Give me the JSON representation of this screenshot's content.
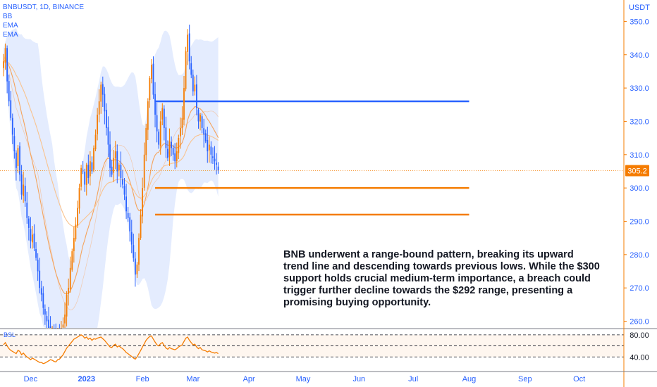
{
  "chart_data": {
    "type": "candlestick",
    "symbol_header": "BNBUSDT, 1D, BINANCE",
    "indicators": [
      "BB",
      "EMA",
      "EMA"
    ],
    "currency": "USDT",
    "current_price": "305.2",
    "price_axis": {
      "range": [
        258,
        356
      ],
      "ticks": [
        "350.0",
        "340.0",
        "330.0",
        "320.0",
        "310.0",
        "300.0",
        "290.0",
        "280.0",
        "270.0",
        "260.0"
      ],
      "tick_values": [
        350,
        340,
        330,
        320,
        310,
        300,
        290,
        280,
        270,
        260
      ]
    },
    "time_axis": {
      "labels": [
        "Dec",
        "2023",
        "Feb",
        "Mar",
        "Apr",
        "May",
        "Jun",
        "Jul",
        "Aug",
        "Sep",
        "Oct"
      ],
      "label_days": [
        15,
        46,
        77,
        105,
        136,
        166,
        197,
        227,
        258,
        289,
        319
      ]
    },
    "levels": [
      {
        "price": 326,
        "color": "#2962ff",
        "from_day": 84,
        "to_day": 258
      },
      {
        "price": 300,
        "color": "#f57c00",
        "from_day": 84,
        "to_day": 258
      },
      {
        "price": 292,
        "color": "#f57c00",
        "from_day": 84,
        "to_day": 258
      }
    ],
    "closes": [
      338,
      342,
      332,
      326,
      321,
      316,
      311,
      306,
      312,
      304,
      298,
      301,
      296,
      291,
      288,
      284,
      286,
      282,
      279,
      275,
      270,
      268,
      264,
      262,
      260,
      258,
      257,
      258,
      256,
      255,
      257,
      256,
      258,
      259,
      262,
      268,
      270,
      276,
      281,
      285,
      289,
      294,
      300,
      306,
      305,
      301,
      307,
      303,
      308,
      305,
      312,
      316,
      322,
      326,
      331,
      328,
      323,
      318,
      313,
      306,
      304,
      309,
      311,
      305,
      307,
      303,
      301,
      298,
      293,
      291,
      287,
      283,
      279,
      274,
      277,
      285,
      292,
      300,
      310,
      318,
      326,
      333,
      337,
      328,
      322,
      317,
      313,
      320,
      324,
      318,
      312,
      309,
      314,
      312,
      310,
      308,
      311,
      315,
      318,
      321,
      330,
      341,
      346,
      338,
      334,
      329,
      331,
      324,
      320,
      322,
      318,
      316,
      314,
      311,
      313,
      310,
      309,
      308,
      307,
      305.2
    ],
    "oscillator": {
      "label": "BSL",
      "ticks": [
        "80.00",
        "40.00"
      ],
      "tick_values": [
        80,
        40
      ],
      "range": [
        20,
        90
      ],
      "values": [
        62,
        66,
        60,
        55,
        52,
        50,
        48,
        46,
        52,
        50,
        44,
        47,
        43,
        40,
        38,
        35,
        38,
        36,
        34,
        32,
        30,
        30,
        28,
        29,
        31,
        33,
        35,
        34,
        32,
        31,
        35,
        36,
        40,
        44,
        50,
        56,
        60,
        64,
        68,
        72,
        74,
        76,
        78,
        80,
        78,
        74,
        76,
        72,
        74,
        70,
        73,
        72,
        74,
        75,
        76,
        73,
        70,
        66,
        62,
        58,
        57,
        61,
        63,
        58,
        60,
        57,
        55,
        52,
        48,
        46,
        43,
        41,
        38,
        36,
        40,
        46,
        52,
        58,
        64,
        70,
        74,
        77,
        78,
        72,
        67,
        62,
        60,
        64,
        66,
        61,
        56,
        54,
        57,
        55,
        54,
        53,
        55,
        58,
        60,
        62,
        68,
        74,
        76,
        70,
        66,
        62,
        63,
        58,
        55,
        57,
        53,
        52,
        51,
        49,
        51,
        49,
        48,
        47,
        48,
        46
      ]
    },
    "colors": {
      "up": "#f57c00",
      "down": "#2962ff",
      "bb_fill": "#dbe6fd",
      "ema_fast": "#f5a35c",
      "ema_slow": "#f9c38f",
      "price_label": "#f57c00",
      "axis_text": "#2962ff"
    }
  },
  "annotation": "BNB underwent a range-bound pattern, breaking its upward trend line and descending towards previous lows. While the $300 support holds crucial medium-term importance, a breach could trigger further decline towards the $292 range, presenting a promising buying opportunity."
}
